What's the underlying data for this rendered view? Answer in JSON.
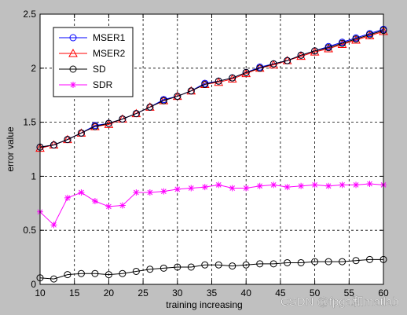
{
  "watermark": "CSDN @fpga和matlab",
  "chart_data": {
    "type": "line",
    "title": "",
    "xlabel": "training increasing",
    "ylabel": "error value",
    "xlim": [
      10,
      60
    ],
    "ylim": [
      0,
      2.5
    ],
    "xticks": [
      "10",
      "15",
      "20",
      "25",
      "30",
      "35",
      "40",
      "45",
      "50",
      "55",
      "60"
    ],
    "yticks": [
      "0",
      "0.5",
      "1",
      "1.5",
      "2",
      "2.5"
    ],
    "grid": true,
    "legend_position": "top-left",
    "x": [
      10,
      12,
      14,
      16,
      18,
      20,
      22,
      24,
      26,
      28,
      30,
      32,
      34,
      36,
      38,
      40,
      42,
      44,
      46,
      48,
      50,
      52,
      54,
      56,
      58,
      60
    ],
    "series": [
      {
        "name": "MSER1",
        "color": "#0000ff",
        "marker": "circle",
        "values": [
          1.27,
          1.29,
          1.34,
          1.4,
          1.47,
          1.49,
          1.53,
          1.58,
          1.64,
          1.71,
          1.74,
          1.79,
          1.86,
          1.88,
          1.91,
          1.96,
          2.01,
          2.04,
          2.07,
          2.12,
          2.16,
          2.2,
          2.24,
          2.28,
          2.32,
          2.36
        ]
      },
      {
        "name": "MSER2",
        "color": "#ff0000",
        "marker": "triangle",
        "values": [
          1.26,
          1.29,
          1.34,
          1.4,
          1.46,
          1.48,
          1.53,
          1.58,
          1.64,
          1.7,
          1.74,
          1.79,
          1.85,
          1.87,
          1.9,
          1.95,
          2.0,
          2.03,
          2.07,
          2.11,
          2.15,
          2.18,
          2.22,
          2.26,
          2.3,
          2.34
        ]
      },
      {
        "name": "SD",
        "color": "#000000",
        "marker": "circle",
        "values": [
          1.27,
          1.29,
          1.34,
          1.4,
          1.46,
          1.49,
          1.53,
          1.58,
          1.64,
          1.7,
          1.74,
          1.79,
          1.85,
          1.88,
          1.91,
          1.96,
          2.0,
          2.04,
          2.07,
          2.12,
          2.16,
          2.19,
          2.23,
          2.27,
          2.31,
          2.35
        ],
        "secondary_values": [
          0.06,
          0.05,
          0.09,
          0.1,
          0.1,
          0.09,
          0.1,
          0.12,
          0.14,
          0.15,
          0.16,
          0.16,
          0.18,
          0.18,
          0.17,
          0.18,
          0.19,
          0.19,
          0.2,
          0.2,
          0.21,
          0.21,
          0.21,
          0.22,
          0.23,
          0.23
        ]
      },
      {
        "name": "SDR",
        "color": "#ff00ff",
        "marker": "star",
        "values": [
          0.67,
          0.55,
          0.8,
          0.85,
          0.77,
          0.72,
          0.73,
          0.85,
          0.85,
          0.86,
          0.88,
          0.89,
          0.9,
          0.92,
          0.89,
          0.89,
          0.91,
          0.92,
          0.9,
          0.91,
          0.92,
          0.91,
          0.92,
          0.92,
          0.93,
          0.92
        ]
      }
    ]
  }
}
